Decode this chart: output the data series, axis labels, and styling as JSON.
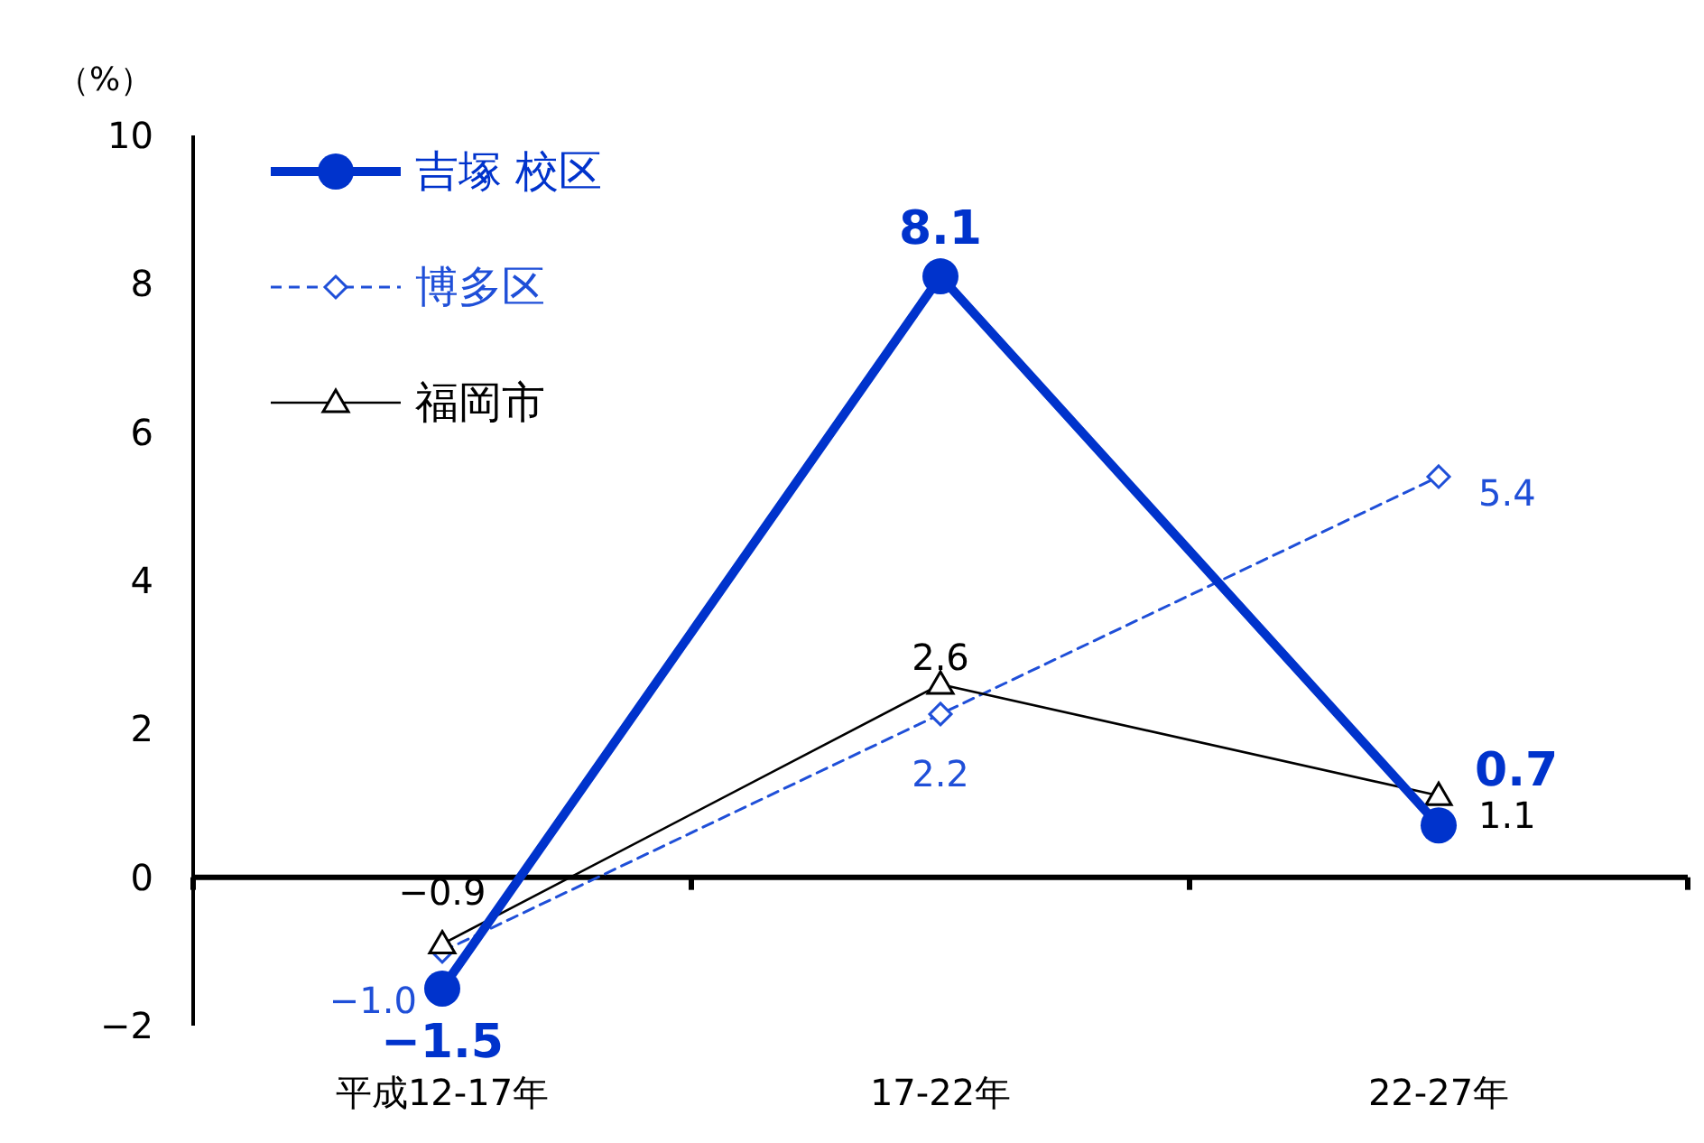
{
  "chart_data": {
    "type": "line",
    "ylabel": "（%）",
    "categories": [
      "平成12-17年",
      "17-22年",
      "22-27年"
    ],
    "series": [
      {
        "name": "吉塚 校区",
        "color": "#0033cc",
        "values": [
          -1.5,
          8.1,
          0.7
        ],
        "value_labels": [
          "−1.5",
          "8.1",
          "0.7"
        ],
        "marker": "circle",
        "line_style": "solid"
      },
      {
        "name": "博多区",
        "color": "#1f4fd8",
        "values": [
          -1.0,
          2.2,
          5.4
        ],
        "value_labels": [
          "−1.0",
          "2.2",
          "5.4"
        ],
        "marker": "diamond",
        "line_style": "dashed"
      },
      {
        "name": "福岡市",
        "color": "#000000",
        "values": [
          -0.9,
          2.6,
          1.1
        ],
        "value_labels": [
          "−0.9",
          "2.6",
          "1.1"
        ],
        "marker": "triangle",
        "line_style": "solid"
      }
    ],
    "ylim": [
      -2,
      10
    ],
    "yticks": [
      -2,
      0,
      2,
      4,
      6,
      8,
      10
    ],
    "legend": "top left"
  }
}
